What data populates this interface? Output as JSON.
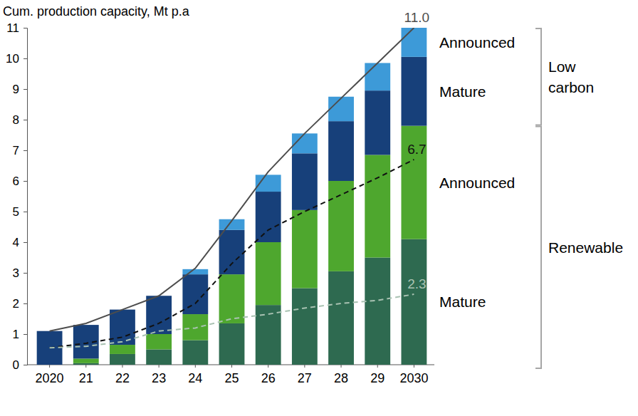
{
  "chart_data": {
    "type": "bar",
    "stacked": true,
    "grid": false,
    "y_label": "Cum. production capacity, Mt p.a",
    "categories": [
      "2020",
      "21",
      "22",
      "23",
      "24",
      "25",
      "26",
      "27",
      "28",
      "29",
      "2030"
    ],
    "ylim": [
      0,
      11
    ],
    "yticks": [
      0,
      1,
      2,
      3,
      4,
      5,
      6,
      7,
      8,
      9,
      10,
      11
    ],
    "series": [
      {
        "name": "Mature",
        "group": "Renewable",
        "type": "bar",
        "color": "#2e6a50",
        "values": [
          0,
          0.05,
          0.35,
          0.5,
          0.8,
          1.35,
          1.95,
          2.5,
          3.05,
          3.5,
          4.1
        ]
      },
      {
        "name": "Announced",
        "group": "Renewable",
        "type": "bar",
        "color": "#4ea72e",
        "values": [
          0,
          0.15,
          0.3,
          0.5,
          0.85,
          1.6,
          2.05,
          2.55,
          2.95,
          3.35,
          3.7
        ]
      },
      {
        "name": "Mature",
        "group": "Low carbon",
        "type": "bar",
        "color": "#17407a",
        "values": [
          1.1,
          1.1,
          1.15,
          1.25,
          1.3,
          1.45,
          1.65,
          1.85,
          1.95,
          2.1,
          2.25
        ]
      },
      {
        "name": "Announced",
        "group": "Low carbon",
        "type": "bar",
        "color": "#3d9ad8",
        "values": [
          0,
          0,
          0,
          0,
          0.17,
          0.35,
          0.55,
          0.65,
          0.8,
          0.9,
          0.95
        ]
      },
      {
        "type": "line",
        "line_style": "solid",
        "color": "#4d4d4d",
        "end_label": "11.0",
        "values": [
          1.1,
          1.35,
          1.8,
          2.25,
          3.15,
          4.7,
          6.3,
          7.55,
          8.7,
          9.85,
          11.0
        ]
      },
      {
        "type": "line",
        "line_style": "dashed",
        "color": "#111111",
        "end_label": "6.7",
        "values": [
          0.55,
          0.7,
          0.9,
          1.35,
          2.0,
          3.3,
          4.4,
          5.0,
          5.55,
          6.1,
          6.7
        ]
      },
      {
        "type": "line",
        "line_style": "dashed",
        "color": "#a9c2b2",
        "end_label": "2.3",
        "values": [
          0.55,
          0.6,
          0.75,
          1.1,
          1.2,
          1.5,
          1.65,
          1.85,
          2.0,
          2.1,
          2.3
        ]
      }
    ]
  }
}
